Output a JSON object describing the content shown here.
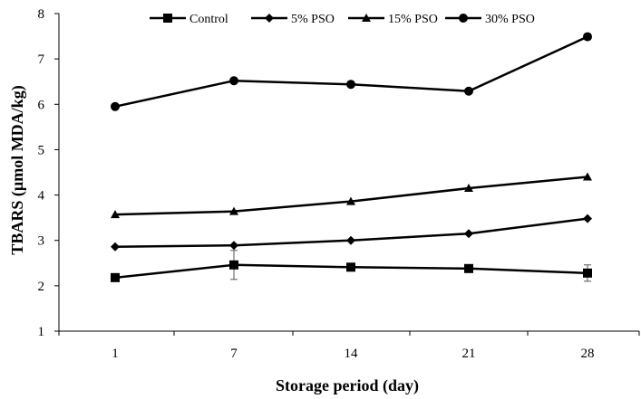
{
  "chart_data": {
    "type": "line",
    "xlabel": "Storage period (day)",
    "ylabel": "TBARS (µmol MDA/kg)",
    "categories": [
      "1",
      "7",
      "14",
      "21",
      "28"
    ],
    "ylim": [
      1,
      8
    ],
    "yticks": [
      "1",
      "2",
      "3",
      "4",
      "5",
      "6",
      "7",
      "8"
    ],
    "grid": false,
    "legend_position": "top",
    "series": [
      {
        "name": "Control",
        "marker": "square",
        "values": [
          2.18,
          2.46,
          2.41,
          2.38,
          2.28
        ],
        "error": [
          0,
          0.32,
          0,
          0,
          0.18
        ]
      },
      {
        "name": "5% PSO",
        "marker": "diamond",
        "values": [
          2.86,
          2.89,
          3.0,
          3.15,
          3.48
        ],
        "error": [
          0,
          0,
          0,
          0,
          0
        ]
      },
      {
        "name": "15% PSO",
        "marker": "triangle",
        "values": [
          3.57,
          3.64,
          3.86,
          4.15,
          4.4
        ],
        "error": [
          0,
          0,
          0,
          0,
          0
        ]
      },
      {
        "name": "30% PSO",
        "marker": "circle",
        "values": [
          5.95,
          6.52,
          6.44,
          6.29,
          7.49
        ],
        "error": [
          0,
          0,
          0,
          0,
          0.06
        ]
      }
    ]
  }
}
